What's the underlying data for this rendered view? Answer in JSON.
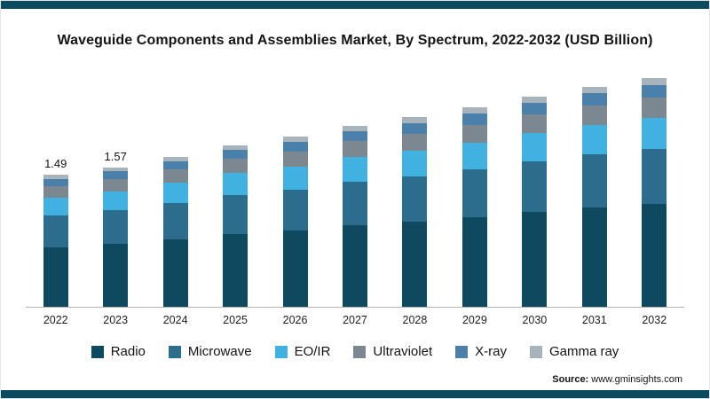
{
  "frame": {
    "accent_color": "#0c4a5e"
  },
  "title": "Waveguide Components and Assemblies Market, By Spectrum, 2022-2032 (USD Billion)",
  "chart_data": {
    "type": "bar",
    "stacked": true,
    "title": "Waveguide Components and Assemblies Market, By Spectrum, 2022-2032 (USD Billion)",
    "unit": "USD Billion",
    "categories": [
      "2022",
      "2023",
      "2024",
      "2025",
      "2026",
      "2027",
      "2028",
      "2029",
      "2030",
      "2031",
      "2032"
    ],
    "series": [
      {
        "name": "Radio",
        "color": "#0d4a5f",
        "values": [
          0.67,
          0.71,
          0.76,
          0.82,
          0.86,
          0.92,
          0.96,
          1.01,
          1.07,
          1.12,
          1.16
        ]
      },
      {
        "name": "Microwave",
        "color": "#2c6c8c",
        "values": [
          0.36,
          0.38,
          0.41,
          0.44,
          0.46,
          0.49,
          0.51,
          0.54,
          0.57,
          0.6,
          0.62
        ]
      },
      {
        "name": "EO/IR",
        "color": "#41b1e1",
        "values": [
          0.2,
          0.21,
          0.23,
          0.25,
          0.26,
          0.28,
          0.29,
          0.3,
          0.32,
          0.33,
          0.35
        ]
      },
      {
        "name": "Ultraviolet",
        "color": "#7b8891",
        "values": [
          0.13,
          0.14,
          0.15,
          0.16,
          0.17,
          0.18,
          0.19,
          0.2,
          0.21,
          0.22,
          0.23
        ]
      },
      {
        "name": "X-ray",
        "color": "#4a80a9",
        "values": [
          0.08,
          0.09,
          0.09,
          0.1,
          0.11,
          0.11,
          0.12,
          0.13,
          0.13,
          0.14,
          0.14
        ]
      },
      {
        "name": "Gamma ray",
        "color": "#a8b4bc",
        "values": [
          0.05,
          0.04,
          0.05,
          0.05,
          0.06,
          0.06,
          0.07,
          0.07,
          0.07,
          0.07,
          0.08
        ]
      }
    ],
    "totals": [
      1.49,
      1.57,
      1.69,
      1.82,
      1.92,
      2.04,
      2.14,
      2.25,
      2.37,
      2.48,
      2.58
    ],
    "data_labels": {
      "2022": "1.49",
      "2023": "1.57"
    },
    "ylim": [
      0,
      2.65
    ],
    "grid": false,
    "legend_position": "bottom"
  },
  "source": {
    "prefix": "Source:",
    "site": "www.gminsights.com"
  }
}
